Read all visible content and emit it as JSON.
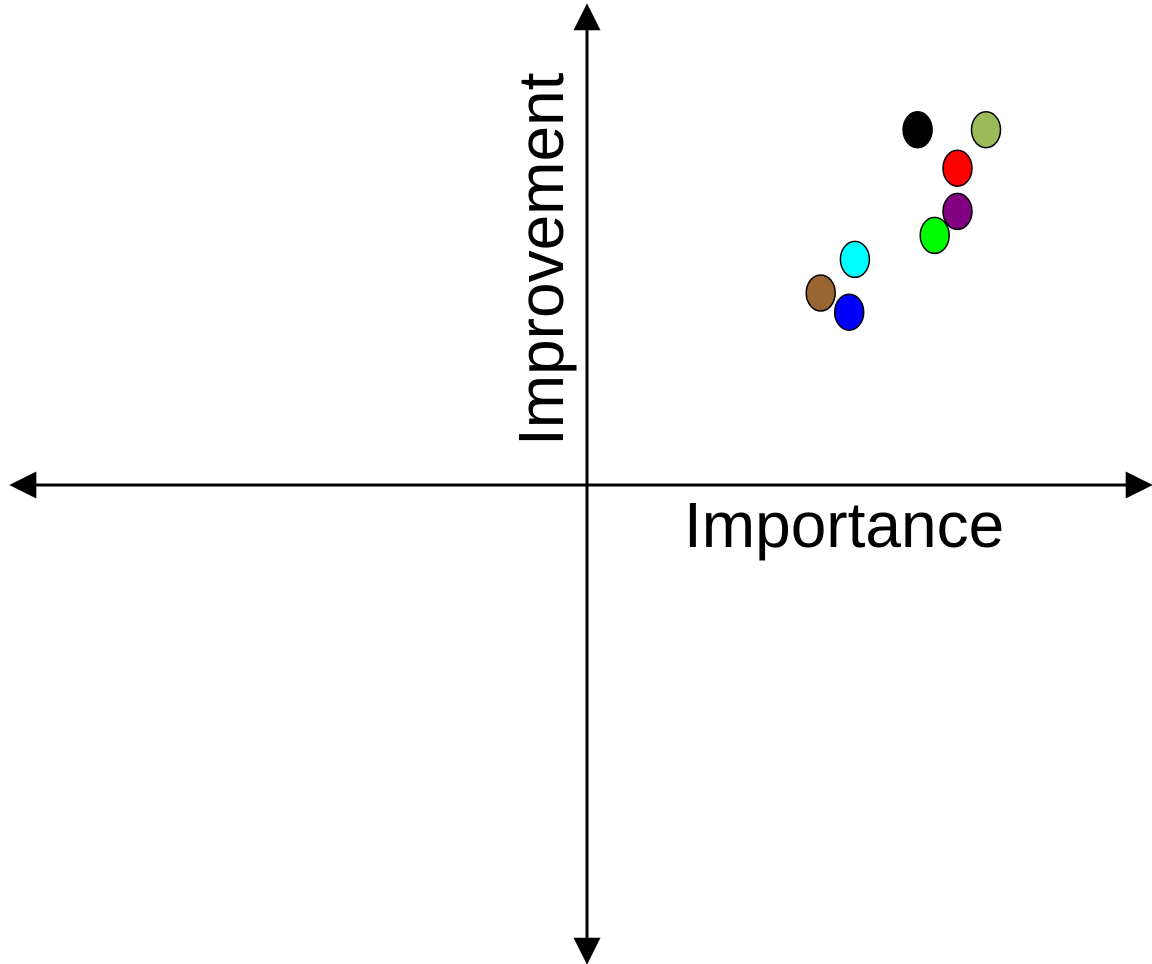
{
  "chart_data": {
    "type": "scatter",
    "title": "",
    "xlabel": "Importance",
    "ylabel": "Improvement",
    "xlim": [
      -1,
      1
    ],
    "ylim": [
      -1,
      1
    ],
    "grid": false,
    "legend": "none",
    "series": [
      {
        "color": "#000000",
        "points": [
          {
            "x": 0.58,
            "y": 0.74
          }
        ]
      },
      {
        "color": "#9bbb59",
        "points": [
          {
            "x": 0.7,
            "y": 0.74
          }
        ]
      },
      {
        "color": "#ff0000",
        "points": [
          {
            "x": 0.65,
            "y": 0.66
          }
        ]
      },
      {
        "color": "#800080",
        "points": [
          {
            "x": 0.65,
            "y": 0.57
          }
        ]
      },
      {
        "color": "#00ff00",
        "points": [
          {
            "x": 0.61,
            "y": 0.52
          }
        ]
      },
      {
        "color": "#00ffff",
        "points": [
          {
            "x": 0.47,
            "y": 0.47
          }
        ]
      },
      {
        "color": "#996633",
        "points": [
          {
            "x": 0.41,
            "y": 0.4
          }
        ]
      },
      {
        "color": "#0000ff",
        "points": [
          {
            "x": 0.46,
            "y": 0.36
          }
        ]
      }
    ]
  }
}
